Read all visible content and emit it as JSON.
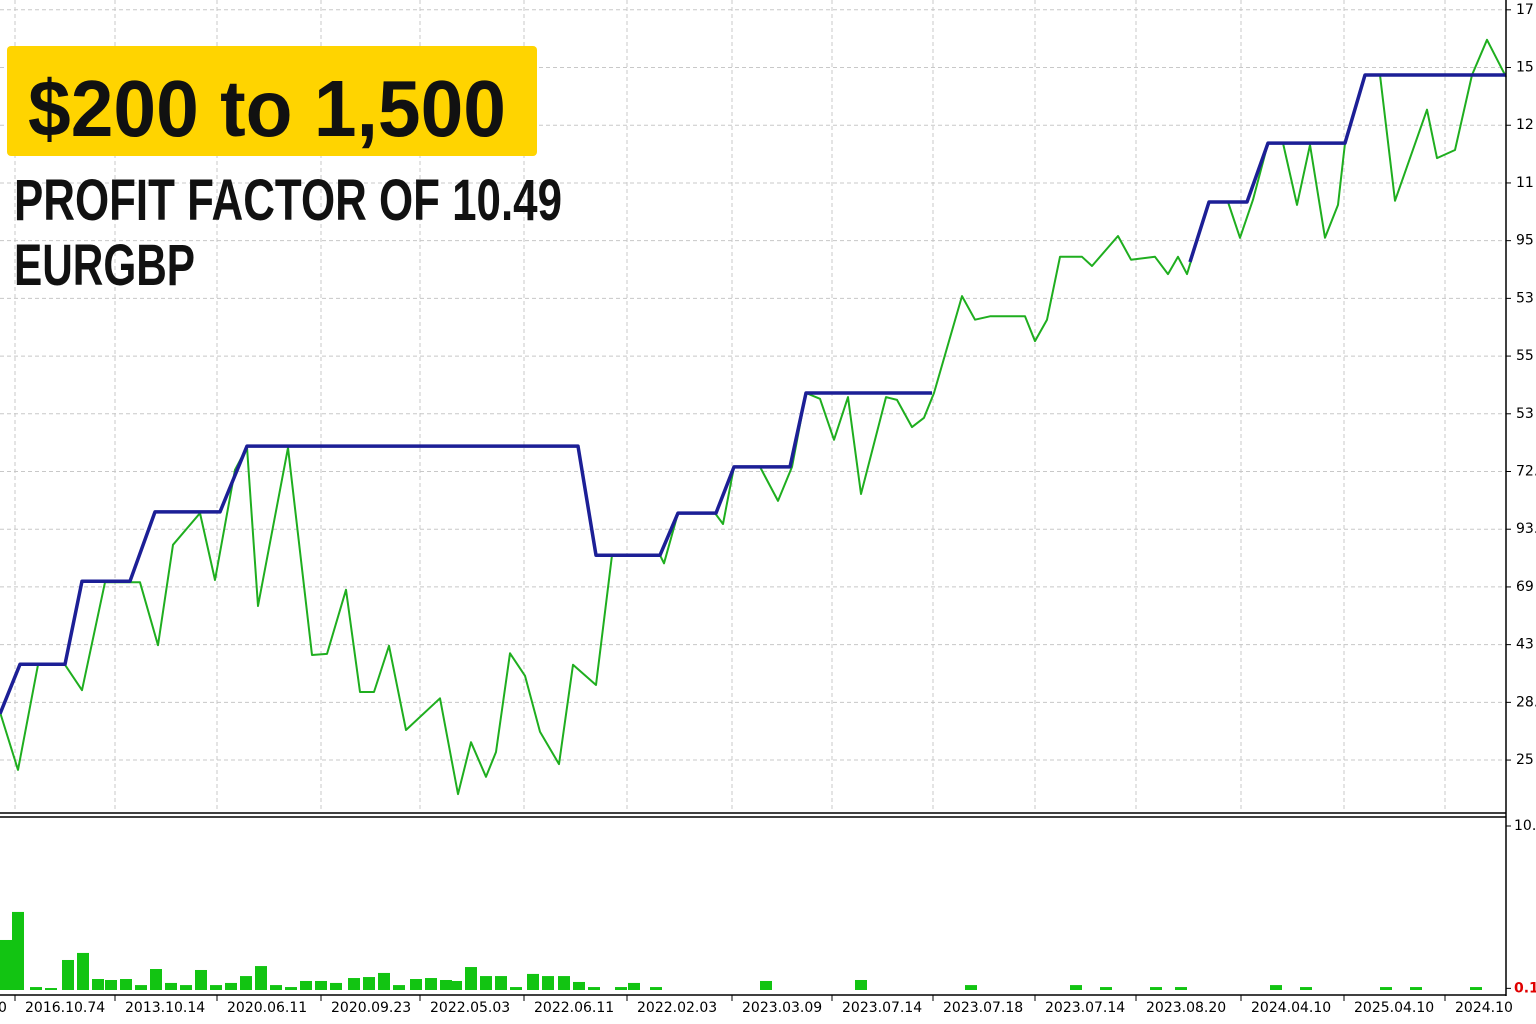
{
  "chart_data": [
    {
      "type": "line",
      "title": "$200 to 1,500",
      "subtitle": "PROFIT FACTOR OF 10.49",
      "symbol": "EURGBP",
      "xlim": [
        0,
        150.6
      ],
      "ylim": [
        -0.9,
        13.17
      ],
      "grid": true,
      "yticks": [
        {
          "value": 0,
          "label": "25"
        },
        {
          "value": 1,
          "label": "28."
        },
        {
          "value": 2,
          "label": "43"
        },
        {
          "value": 3,
          "label": "69"
        },
        {
          "value": 4,
          "label": "93."
        },
        {
          "value": 5,
          "label": "72."
        },
        {
          "value": 6,
          "label": "53"
        },
        {
          "value": 7,
          "label": "55"
        },
        {
          "value": 8,
          "label": "53"
        },
        {
          "value": 9,
          "label": "95"
        },
        {
          "value": 10,
          "label": "11"
        },
        {
          "value": 11,
          "label": "12"
        },
        {
          "value": 12,
          "label": "15"
        },
        {
          "value": 13,
          "label": "17"
        }
      ],
      "xticks": [
        {
          "value": -8.7,
          "label": "0"
        },
        {
          "value": 1.5,
          "label": "2016.10.74"
        },
        {
          "value": 11.5,
          "label": "2013.10.14"
        },
        {
          "value": 21.7,
          "label": "2020.06.11"
        },
        {
          "value": 32.1,
          "label": "2020.09.23"
        },
        {
          "value": 42,
          "label": "2022.05.03"
        },
        {
          "value": 52.4,
          "label": "2022.06.11"
        },
        {
          "value": 62.7,
          "label": "2022.02.03"
        },
        {
          "value": 73.2,
          "label": "2023.03.09"
        },
        {
          "value": 83.2,
          "label": "2023.07.14"
        },
        {
          "value": 93.3,
          "label": "2023.07.18"
        },
        {
          "value": 103.5,
          "label": "2023.07.14"
        },
        {
          "value": 113.6,
          "label": "2023.08.20"
        },
        {
          "value": 124.1,
          "label": "2024.04.10"
        },
        {
          "value": 134.4,
          "label": "2025.04.10"
        },
        {
          "value": 144.5,
          "label": "2024.10"
        }
      ],
      "series": [
        {
          "color": "#1fae1f",
          "x": [
            0,
            1.8,
            3.8,
            6.5,
            8.2,
            10.5,
            14,
            15.8,
            17.3,
            20,
            21.5,
            23.5,
            24.7,
            25.8,
            28.8,
            31.2,
            32.7,
            34.6,
            36,
            37.4,
            38.9,
            40.6,
            44,
            45.8,
            47.1,
            48.6,
            49.6,
            51,
            52.5,
            54,
            55.9,
            57.3,
            59.6,
            61.2,
            66,
            66.4,
            67.8,
            71.5,
            72.3,
            73.4,
            76,
            77.8,
            79.2,
            80.6,
            82,
            83.4,
            84.8,
            86.1,
            88.6,
            89.7,
            91.2,
            92.4,
            93.4,
            96.2,
            97.5,
            99,
            102.5,
            103.5,
            104.7,
            106,
            108.2,
            109.2,
            111.8,
            113.1,
            115.5,
            116.8,
            117.8,
            118.7,
            120.9,
            122.8,
            124,
            125.3,
            126.8,
            128.3,
            129.7,
            131,
            132.5,
            133.8,
            134.5,
            136.5,
            138,
            139.5,
            142.7,
            143.7,
            145.5,
            147.2,
            148.7,
            150.6
          ],
          "values": [
            0.83,
            -0.17,
            1.65,
            1.65,
            1.21,
            3.08,
            3.08,
            1.99,
            3.73,
            4.28,
            3.12,
            5.03,
            5.42,
            2.67,
            5.41,
            1.82,
            1.84,
            2.95,
            1.18,
            1.18,
            1.98,
            0.52,
            1.07,
            -0.59,
            0.31,
            -0.29,
            0.14,
            1.85,
            1.46,
            0.49,
            -0.07,
            1.65,
            1.3,
            3.55,
            3.55,
            3.41,
            4.28,
            4.28,
            4.09,
            5.08,
            5.08,
            4.49,
            5.08,
            6.36,
            6.26,
            5.55,
            6.29,
            4.61,
            6.29,
            6.24,
            5.77,
            5.93,
            6.36,
            8.04,
            7.63,
            7.69,
            7.69,
            7.26,
            7.63,
            8.72,
            8.72,
            8.56,
            9.08,
            8.67,
            8.72,
            8.42,
            8.72,
            8.42,
            9.67,
            9.67,
            9.05,
            9.71,
            10.69,
            10.69,
            9.62,
            10.66,
            9.05,
            9.62,
            10.69,
            11.87,
            11.87,
            9.69,
            11.27,
            10.43,
            10.57,
            11.87,
            12.48,
            11.84
          ]
        },
        {
          "color": "#1c1f96",
          "x": [
            0,
            2,
            6.5,
            8.2,
            13,
            15.5,
            22,
            24.7,
            57.8,
            59.6,
            66,
            67.8,
            71.6,
            73.4,
            79,
            80.6,
            93.2,
            null,
            119,
            120.9,
            124.7,
            126.8,
            134.5,
            136.5,
            150.6
          ],
          "values": [
            0.8,
            1.66,
            1.66,
            3.1,
            3.1,
            4.3,
            4.3,
            5.44,
            5.44,
            3.55,
            3.55,
            4.28,
            4.28,
            5.08,
            5.08,
            6.36,
            6.36,
            null,
            8.63,
            9.67,
            9.67,
            10.69,
            10.69,
            11.87,
            11.87
          ]
        }
      ]
    },
    {
      "type": "bar",
      "color": "#12c412",
      "xlim": [
        0,
        150.6
      ],
      "ylim": [
        0,
        10
      ],
      "yticks": [
        {
          "value": 10,
          "label": "10."
        },
        0.1
      ],
      "x": [
        0,
        1.2,
        3,
        4.5,
        6.2,
        7.7,
        9.2,
        10.5,
        12,
        13.5,
        15,
        16.5,
        18,
        19.5,
        21,
        22.5,
        24,
        25.5,
        27,
        28.5,
        30,
        31.5,
        33,
        34.8,
        36.3,
        37.8,
        39.3,
        41,
        42.5,
        44,
        45,
        46.5,
        48,
        49.5,
        51,
        52.7,
        54.2,
        55.8,
        57.3,
        58.8,
        61.5,
        62.8,
        65,
        76,
        85.5,
        96.5,
        107,
        110,
        115,
        117.5,
        127,
        130,
        138,
        141,
        147
      ],
      "values": [
        3.05,
        4.76,
        0.18,
        0.12,
        1.83,
        2.26,
        0.67,
        0.61,
        0.67,
        0.3,
        1.28,
        0.43,
        0.3,
        1.22,
        0.3,
        0.43,
        0.85,
        1.46,
        0.3,
        0.18,
        0.55,
        0.55,
        0.43,
        0.73,
        0.79,
        1.04,
        0.3,
        0.67,
        0.73,
        0.61,
        0.55,
        1.4,
        0.85,
        0.85,
        0.18,
        0.98,
        0.85,
        0.85,
        0.49,
        0.18,
        0.18,
        0.43,
        0.18,
        0.55,
        0.61,
        0.3,
        0.3,
        0.18,
        0.18,
        0.18,
        0.3,
        0.18,
        0.18,
        0.18,
        0.18
      ]
    }
  ]
}
